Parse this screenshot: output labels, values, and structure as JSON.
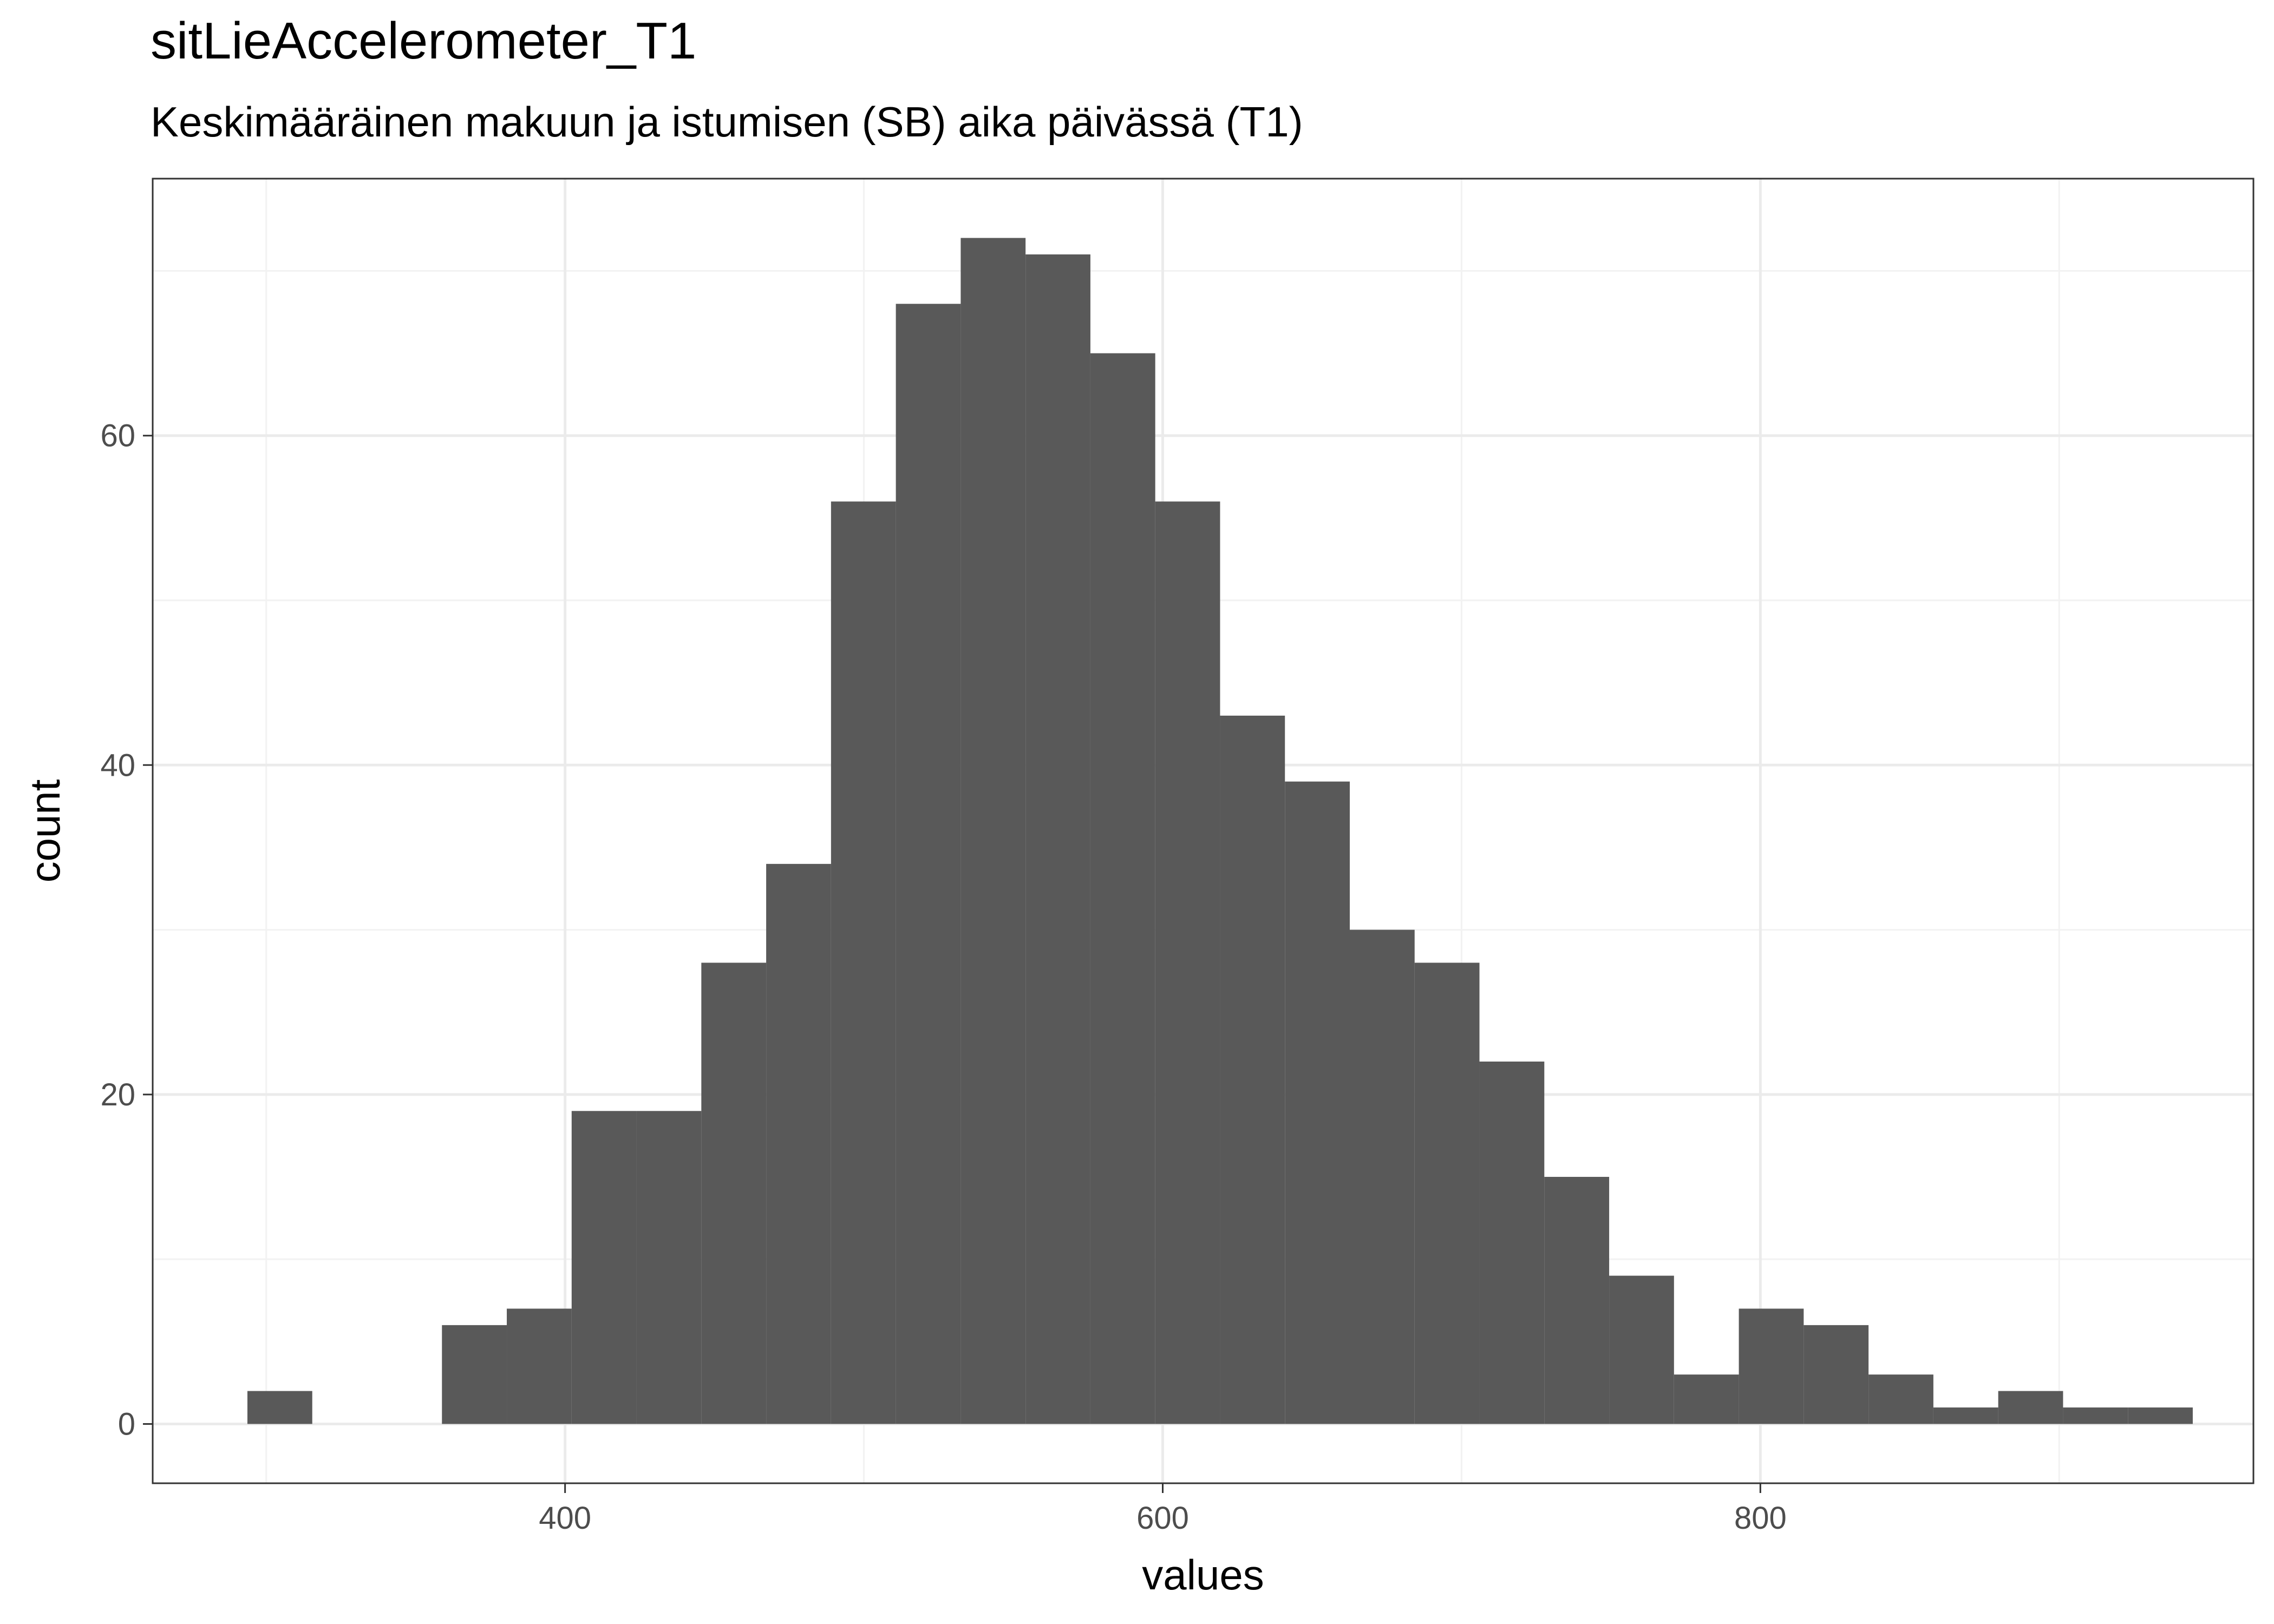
{
  "chart_data": {
    "type": "bar",
    "title": "sitLieAccelerometer_T1",
    "subtitle": "Keskimääräinen makuun ja istumisen (SB) aika päivässä (T1)",
    "xlabel": "values",
    "ylabel": "count",
    "xlim": [
      262,
      965
    ],
    "ylim": [
      -3.6,
      75.6
    ],
    "x_ticks": [
      400,
      600,
      800
    ],
    "y_ticks": [
      0,
      20,
      40,
      60
    ],
    "grid": true,
    "legend": "none",
    "bin_width": 21.7,
    "bins": [
      {
        "x0": 293.7,
        "x1": 315.4,
        "count": 2
      },
      {
        "x0": 315.4,
        "x1": 337.1,
        "count": 0
      },
      {
        "x0": 337.1,
        "x1": 358.8,
        "count": 0
      },
      {
        "x0": 358.8,
        "x1": 380.5,
        "count": 6
      },
      {
        "x0": 380.5,
        "x1": 402.2,
        "count": 7
      },
      {
        "x0": 402.2,
        "x1": 423.9,
        "count": 19
      },
      {
        "x0": 423.9,
        "x1": 445.6,
        "count": 19
      },
      {
        "x0": 445.6,
        "x1": 467.3,
        "count": 28
      },
      {
        "x0": 467.3,
        "x1": 489.0,
        "count": 34
      },
      {
        "x0": 489.0,
        "x1": 510.7,
        "count": 56
      },
      {
        "x0": 510.7,
        "x1": 532.4,
        "count": 68
      },
      {
        "x0": 532.4,
        "x1": 554.1,
        "count": 72
      },
      {
        "x0": 554.1,
        "x1": 575.8,
        "count": 71
      },
      {
        "x0": 575.8,
        "x1": 597.5,
        "count": 65
      },
      {
        "x0": 597.5,
        "x1": 619.2,
        "count": 56
      },
      {
        "x0": 619.2,
        "x1": 640.9,
        "count": 43
      },
      {
        "x0": 640.9,
        "x1": 662.6,
        "count": 39
      },
      {
        "x0": 662.6,
        "x1": 684.3,
        "count": 30
      },
      {
        "x0": 684.3,
        "x1": 706.0,
        "count": 28
      },
      {
        "x0": 706.0,
        "x1": 727.7,
        "count": 22
      },
      {
        "x0": 727.7,
        "x1": 749.4,
        "count": 15
      },
      {
        "x0": 749.4,
        "x1": 771.1,
        "count": 9
      },
      {
        "x0": 771.1,
        "x1": 792.8,
        "count": 3
      },
      {
        "x0": 792.8,
        "x1": 814.5,
        "count": 7
      },
      {
        "x0": 814.5,
        "x1": 836.2,
        "count": 6
      },
      {
        "x0": 836.2,
        "x1": 857.9,
        "count": 3
      },
      {
        "x0": 857.9,
        "x1": 879.6,
        "count": 1
      },
      {
        "x0": 879.6,
        "x1": 901.3,
        "count": 2
      },
      {
        "x0": 901.3,
        "x1": 923.0,
        "count": 1
      },
      {
        "x0": 923.0,
        "x1": 944.7,
        "count": 1
      }
    ],
    "colors": {
      "bar_fill": "#595959",
      "panel_background": "#ffffff",
      "panel_border": "#333333",
      "grid_major": "#ebebeb",
      "grid_minor": "#f2f2f2",
      "tick_text": "#4d4d4d",
      "tick_mark": "#333333"
    }
  }
}
